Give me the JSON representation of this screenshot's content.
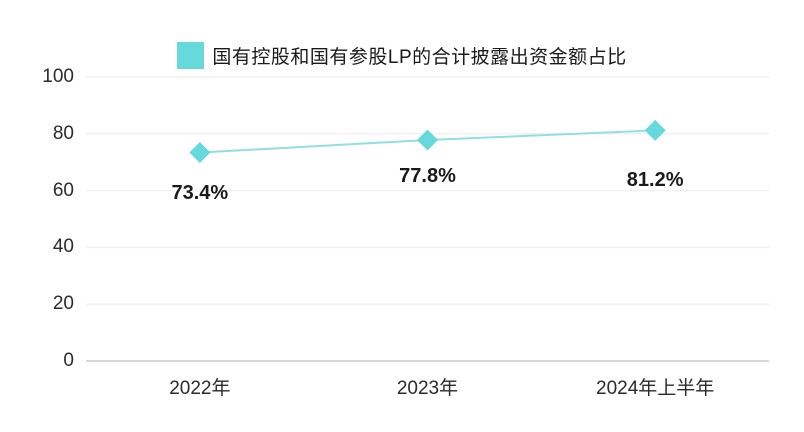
{
  "chart_data": {
    "type": "line",
    "title": "",
    "legend": {
      "label": "国有控股和国有参股LP的合计披露出资金额占比",
      "position": "top"
    },
    "categories": [
      "2022年",
      "2023年",
      "2024年上半年"
    ],
    "series": [
      {
        "name": "国有控股和国有参股LP的合计披露出资金额占比",
        "values": [
          73.4,
          77.8,
          81.2
        ],
        "labels": [
          "73.4%",
          "77.8%",
          "81.2%"
        ]
      }
    ],
    "xlabel": "",
    "ylabel": "",
    "ylim": [
      0,
      100
    ],
    "yticks": [
      0,
      20,
      40,
      60,
      80,
      100
    ],
    "grid": true,
    "marker": "diamond",
    "colors": {
      "marker": "#66d9dc",
      "line": "#93dee1",
      "gridline": "#f1f1f1",
      "axis_line": "#d9d9d9",
      "data_label": "#1a1a1a",
      "tick_label": "#2b2b2b"
    }
  }
}
